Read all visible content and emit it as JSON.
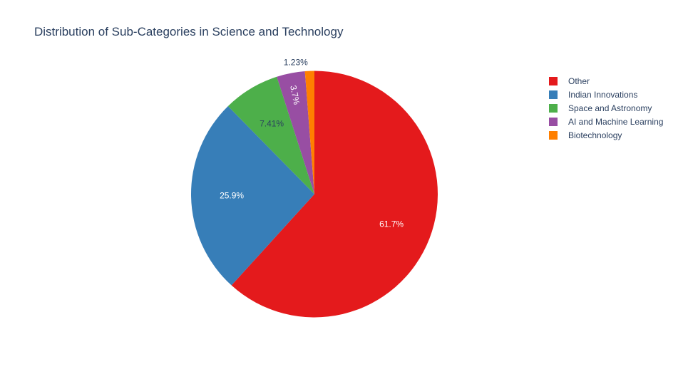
{
  "chart_data": {
    "type": "pie",
    "title": "Distribution of Sub-Categories in Science and Technology",
    "labels": [
      "Other",
      "Indian Innovations",
      "Space and Astronomy",
      "AI and Machine Learning",
      "Biotechnology"
    ],
    "values": [
      61.7,
      25.9,
      7.41,
      3.7,
      1.23
    ],
    "text_labels": [
      "61.7%",
      "25.9%",
      "7.41%",
      "3.7%",
      "1.23%"
    ],
    "colors": [
      "#e41a1c",
      "#377eb8",
      "#4daf4a",
      "#984ea3",
      "#ff7f00"
    ],
    "legend_position": "top-right",
    "start_angle": "12 o'clock",
    "direction": "clockwise"
  }
}
